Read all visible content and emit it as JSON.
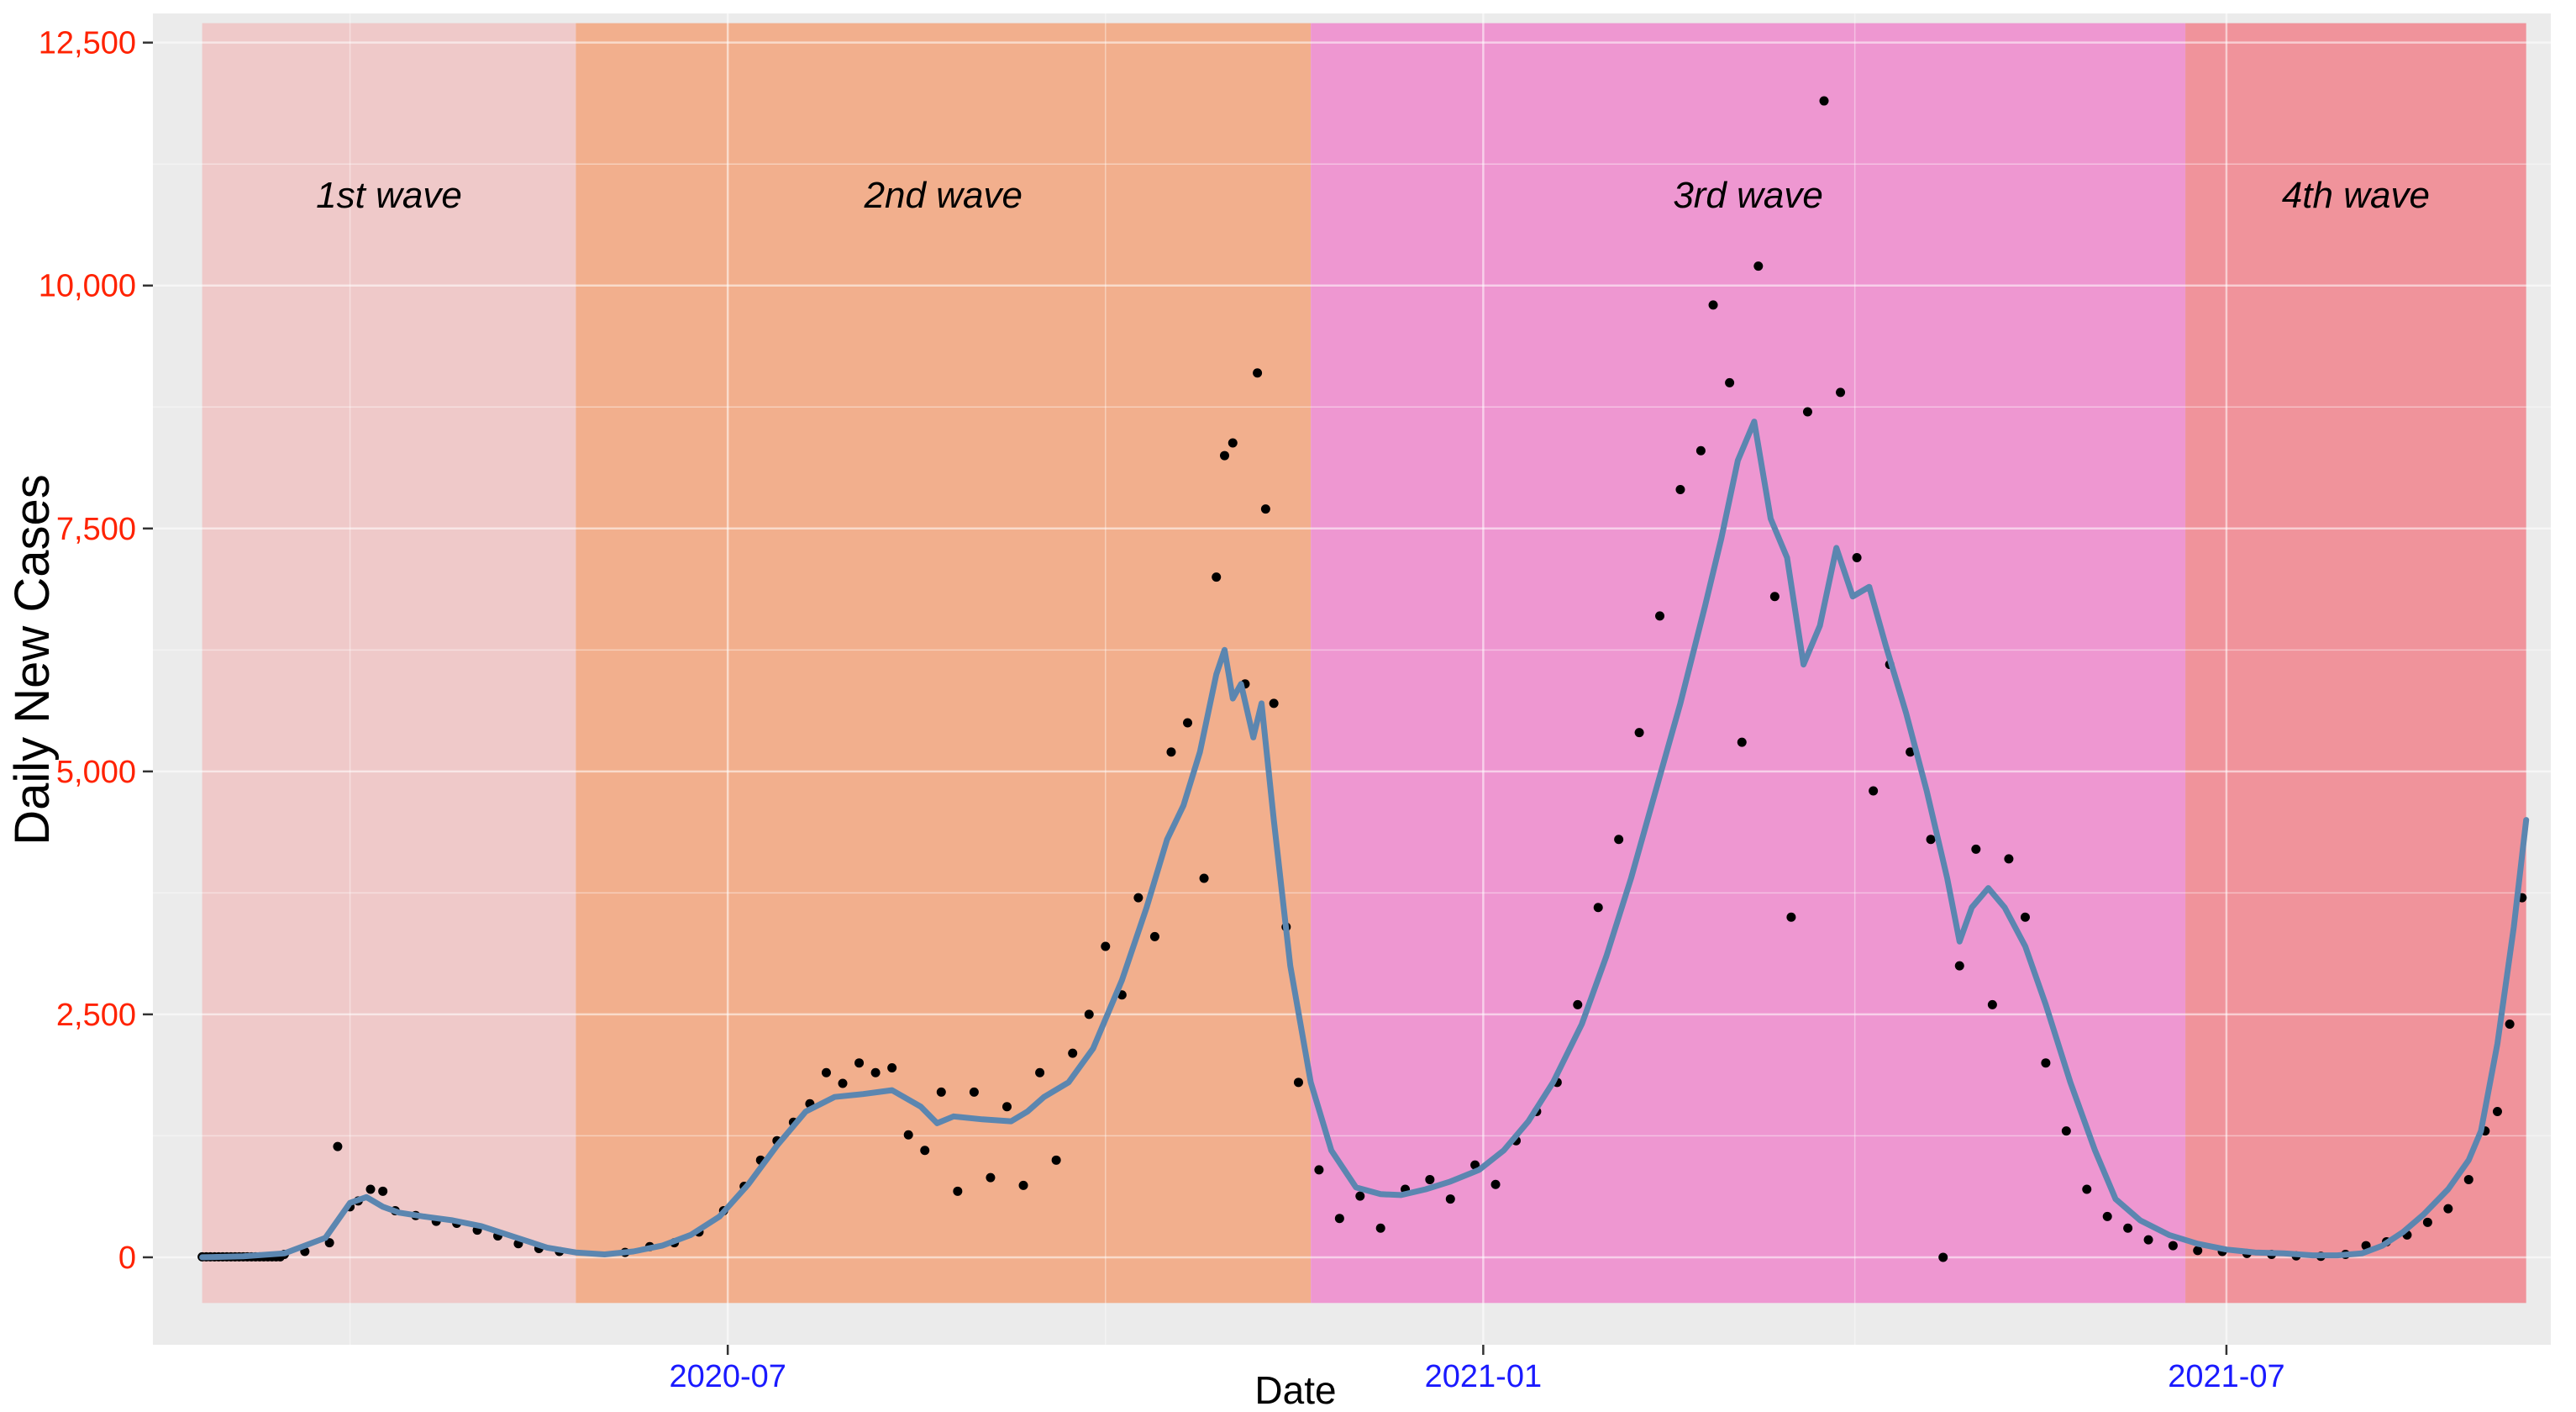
{
  "chart_data": {
    "type": "scatter",
    "title": "",
    "xlabel": "Date",
    "ylabel": "Daily New Cases",
    "x_range": [
      "2020-02-12",
      "2021-09-18"
    ],
    "ylim": [
      -900,
      12800
    ],
    "x_ticks": [
      {
        "date": "2020-07-01",
        "label": "2020-07"
      },
      {
        "date": "2021-01-01",
        "label": "2021-01"
      },
      {
        "date": "2021-07-01",
        "label": "2021-07"
      }
    ],
    "y_ticks": [
      {
        "value": 0,
        "label": "0"
      },
      {
        "value": 2500,
        "label": "2,500"
      },
      {
        "value": 5000,
        "label": "5,000"
      },
      {
        "value": 7500,
        "label": "7,500"
      },
      {
        "value": 10000,
        "label": "10,000"
      },
      {
        "value": 12500,
        "label": "12,500"
      }
    ],
    "grid": true,
    "background_color": "#ebebeb",
    "waves": [
      {
        "label": "1st wave",
        "start": "2020-02-24",
        "end": "2020-05-25",
        "color": "#efc9c9"
      },
      {
        "label": "2nd wave",
        "start": "2020-05-25",
        "end": "2020-11-20",
        "color": "#f2af8d"
      },
      {
        "label": "3rd wave",
        "start": "2020-11-20",
        "end": "2021-06-21",
        "color": "#ee97d1"
      },
      {
        "label": "4th wave",
        "start": "2021-06-21",
        "end": "2021-09-12",
        "color": "#f0939b"
      }
    ],
    "series": [
      {
        "type": "line",
        "color": "#5b86b0",
        "points": [
          [
            "2020-02-24",
            0
          ],
          [
            "2020-03-05",
            10
          ],
          [
            "2020-03-15",
            40
          ],
          [
            "2020-03-25",
            200
          ],
          [
            "2020-03-31",
            560
          ],
          [
            "2020-04-04",
            620
          ],
          [
            "2020-04-08",
            520
          ],
          [
            "2020-04-12",
            460
          ],
          [
            "2020-04-18",
            420
          ],
          [
            "2020-04-25",
            380
          ],
          [
            "2020-05-02",
            320
          ],
          [
            "2020-05-10",
            210
          ],
          [
            "2020-05-18",
            100
          ],
          [
            "2020-05-25",
            50
          ],
          [
            "2020-06-01",
            30
          ],
          [
            "2020-06-08",
            60
          ],
          [
            "2020-06-15",
            120
          ],
          [
            "2020-06-22",
            230
          ],
          [
            "2020-06-29",
            420
          ],
          [
            "2020-07-06",
            750
          ],
          [
            "2020-07-13",
            1150
          ],
          [
            "2020-07-20",
            1500
          ],
          [
            "2020-07-27",
            1650
          ],
          [
            "2020-08-03",
            1680
          ],
          [
            "2020-08-10",
            1720
          ],
          [
            "2020-08-17",
            1550
          ],
          [
            "2020-08-21",
            1380
          ],
          [
            "2020-08-25",
            1450
          ],
          [
            "2020-09-01",
            1420
          ],
          [
            "2020-09-08",
            1400
          ],
          [
            "2020-09-12",
            1500
          ],
          [
            "2020-09-16",
            1650
          ],
          [
            "2020-09-22",
            1800
          ],
          [
            "2020-09-28",
            2150
          ],
          [
            "2020-10-05",
            2850
          ],
          [
            "2020-10-11",
            3600
          ],
          [
            "2020-10-16",
            4300
          ],
          [
            "2020-10-20",
            4650
          ],
          [
            "2020-10-24",
            5200
          ],
          [
            "2020-10-28",
            6000
          ],
          [
            "2020-10-30",
            6250
          ],
          [
            "2020-11-01",
            5750
          ],
          [
            "2020-11-03",
            5900
          ],
          [
            "2020-11-06",
            5350
          ],
          [
            "2020-11-08",
            5700
          ],
          [
            "2020-11-11",
            4500
          ],
          [
            "2020-11-15",
            3000
          ],
          [
            "2020-11-20",
            1800
          ],
          [
            "2020-11-25",
            1100
          ],
          [
            "2020-12-01",
            720
          ],
          [
            "2020-12-07",
            650
          ],
          [
            "2020-12-12",
            640
          ],
          [
            "2020-12-18",
            700
          ],
          [
            "2020-12-24",
            780
          ],
          [
            "2020-12-31",
            900
          ],
          [
            "2021-01-06",
            1100
          ],
          [
            "2021-01-12",
            1400
          ],
          [
            "2021-01-18",
            1800
          ],
          [
            "2021-01-25",
            2400
          ],
          [
            "2021-01-31",
            3100
          ],
          [
            "2021-02-06",
            3900
          ],
          [
            "2021-02-12",
            4800
          ],
          [
            "2021-02-18",
            5700
          ],
          [
            "2021-02-24",
            6700
          ],
          [
            "2021-02-28",
            7400
          ],
          [
            "2021-03-04",
            8200
          ],
          [
            "2021-03-08",
            8600
          ],
          [
            "2021-03-12",
            7600
          ],
          [
            "2021-03-16",
            7200
          ],
          [
            "2021-03-20",
            6100
          ],
          [
            "2021-03-24",
            6500
          ],
          [
            "2021-03-28",
            7300
          ],
          [
            "2021-04-01",
            6800
          ],
          [
            "2021-04-05",
            6900
          ],
          [
            "2021-04-09",
            6300
          ],
          [
            "2021-04-14",
            5600
          ],
          [
            "2021-04-19",
            4800
          ],
          [
            "2021-04-24",
            3900
          ],
          [
            "2021-04-27",
            3250
          ],
          [
            "2021-04-30",
            3600
          ],
          [
            "2021-05-04",
            3800
          ],
          [
            "2021-05-08",
            3600
          ],
          [
            "2021-05-13",
            3200
          ],
          [
            "2021-05-18",
            2600
          ],
          [
            "2021-05-24",
            1800
          ],
          [
            "2021-05-30",
            1100
          ],
          [
            "2021-06-04",
            600
          ],
          [
            "2021-06-10",
            380
          ],
          [
            "2021-06-17",
            230
          ],
          [
            "2021-06-24",
            140
          ],
          [
            "2021-07-01",
            80
          ],
          [
            "2021-07-08",
            50
          ],
          [
            "2021-07-15",
            40
          ],
          [
            "2021-07-22",
            20
          ],
          [
            "2021-07-28",
            20
          ],
          [
            "2021-08-03",
            40
          ],
          [
            "2021-08-08",
            120
          ],
          [
            "2021-08-13",
            260
          ],
          [
            "2021-08-18",
            440
          ],
          [
            "2021-08-24",
            700
          ],
          [
            "2021-08-29",
            1000
          ],
          [
            "2021-09-01",
            1300
          ],
          [
            "2021-09-05",
            2200
          ],
          [
            "2021-09-09",
            3400
          ],
          [
            "2021-09-12",
            4500
          ]
        ]
      },
      {
        "type": "scatter",
        "color": "#000000",
        "points": [
          [
            "2020-03-15",
            30
          ],
          [
            "2020-03-20",
            60
          ],
          [
            "2020-03-26",
            150
          ],
          [
            "2020-03-28",
            1140
          ],
          [
            "2020-03-31",
            520
          ],
          [
            "2020-04-02",
            580
          ],
          [
            "2020-04-05",
            700
          ],
          [
            "2020-04-08",
            680
          ],
          [
            "2020-04-11",
            480
          ],
          [
            "2020-04-16",
            430
          ],
          [
            "2020-04-21",
            370
          ],
          [
            "2020-04-26",
            350
          ],
          [
            "2020-05-01",
            280
          ],
          [
            "2020-05-06",
            220
          ],
          [
            "2020-05-11",
            140
          ],
          [
            "2020-05-16",
            90
          ],
          [
            "2020-05-21",
            60
          ],
          [
            "2020-06-06",
            50
          ],
          [
            "2020-06-12",
            110
          ],
          [
            "2020-06-18",
            150
          ],
          [
            "2020-06-24",
            260
          ],
          [
            "2020-06-30",
            480
          ],
          [
            "2020-07-05",
            730
          ],
          [
            "2020-07-09",
            1000
          ],
          [
            "2020-07-13",
            1200
          ],
          [
            "2020-07-17",
            1390
          ],
          [
            "2020-07-21",
            1580
          ],
          [
            "2020-07-25",
            1900
          ],
          [
            "2020-07-29",
            1790
          ],
          [
            "2020-08-02",
            2000
          ],
          [
            "2020-08-06",
            1900
          ],
          [
            "2020-08-10",
            1950
          ],
          [
            "2020-08-14",
            1260
          ],
          [
            "2020-08-18",
            1100
          ],
          [
            "2020-08-22",
            1700
          ],
          [
            "2020-08-26",
            680
          ],
          [
            "2020-08-30",
            1700
          ],
          [
            "2020-09-03",
            820
          ],
          [
            "2020-09-07",
            1550
          ],
          [
            "2020-09-11",
            740
          ],
          [
            "2020-09-15",
            1900
          ],
          [
            "2020-09-19",
            1000
          ],
          [
            "2020-09-23",
            2100
          ],
          [
            "2020-09-27",
            2500
          ],
          [
            "2020-10-01",
            3200
          ],
          [
            "2020-10-05",
            2700
          ],
          [
            "2020-10-09",
            3700
          ],
          [
            "2020-10-13",
            3300
          ],
          [
            "2020-10-17",
            5200
          ],
          [
            "2020-10-21",
            5500
          ],
          [
            "2020-10-25",
            3900
          ],
          [
            "2020-10-28",
            7000
          ],
          [
            "2020-10-30",
            8250
          ],
          [
            "2020-11-01",
            8380
          ],
          [
            "2020-11-04",
            5900
          ],
          [
            "2020-11-07",
            9100
          ],
          [
            "2020-11-09",
            7700
          ],
          [
            "2020-11-11",
            5700
          ],
          [
            "2020-11-14",
            3400
          ],
          [
            "2020-11-17",
            1800
          ],
          [
            "2020-11-22",
            900
          ],
          [
            "2020-11-27",
            400
          ],
          [
            "2020-12-02",
            630
          ],
          [
            "2020-12-07",
            300
          ],
          [
            "2020-12-13",
            700
          ],
          [
            "2020-12-19",
            800
          ],
          [
            "2020-12-24",
            600
          ],
          [
            "2020-12-30",
            950
          ],
          [
            "2021-01-04",
            750
          ],
          [
            "2021-01-09",
            1200
          ],
          [
            "2021-01-14",
            1500
          ],
          [
            "2021-01-19",
            1800
          ],
          [
            "2021-01-24",
            2600
          ],
          [
            "2021-01-29",
            3600
          ],
          [
            "2021-02-03",
            4300
          ],
          [
            "2021-02-08",
            5400
          ],
          [
            "2021-02-13",
            6600
          ],
          [
            "2021-02-18",
            7900
          ],
          [
            "2021-02-23",
            8300
          ],
          [
            "2021-02-26",
            9800
          ],
          [
            "2021-03-02",
            9000
          ],
          [
            "2021-03-05",
            5300
          ],
          [
            "2021-03-09",
            10200
          ],
          [
            "2021-03-13",
            6800
          ],
          [
            "2021-03-17",
            3500
          ],
          [
            "2021-03-21",
            8700
          ],
          [
            "2021-03-25",
            11900
          ],
          [
            "2021-03-29",
            8900
          ],
          [
            "2021-04-02",
            7200
          ],
          [
            "2021-04-06",
            4800
          ],
          [
            "2021-04-10",
            6100
          ],
          [
            "2021-04-15",
            5200
          ],
          [
            "2021-04-20",
            4300
          ],
          [
            "2021-04-23",
            0
          ],
          [
            "2021-04-27",
            3000
          ],
          [
            "2021-05-01",
            4200
          ],
          [
            "2021-05-05",
            2600
          ],
          [
            "2021-05-09",
            4100
          ],
          [
            "2021-05-13",
            3500
          ],
          [
            "2021-05-18",
            2000
          ],
          [
            "2021-05-23",
            1300
          ],
          [
            "2021-05-28",
            700
          ],
          [
            "2021-06-02",
            420
          ],
          [
            "2021-06-07",
            300
          ],
          [
            "2021-06-12",
            180
          ],
          [
            "2021-06-18",
            120
          ],
          [
            "2021-06-24",
            70
          ],
          [
            "2021-06-30",
            60
          ],
          [
            "2021-07-06",
            40
          ],
          [
            "2021-07-12",
            30
          ],
          [
            "2021-07-18",
            15
          ],
          [
            "2021-07-24",
            10
          ],
          [
            "2021-07-30",
            30
          ],
          [
            "2021-08-04",
            120
          ],
          [
            "2021-08-09",
            160
          ],
          [
            "2021-08-14",
            230
          ],
          [
            "2021-08-19",
            360
          ],
          [
            "2021-08-24",
            500
          ],
          [
            "2021-08-29",
            800
          ],
          [
            "2021-09-02",
            1300
          ],
          [
            "2021-09-05",
            1500
          ],
          [
            "2021-09-08",
            2400
          ],
          [
            "2021-09-11",
            3700
          ]
        ]
      }
    ]
  }
}
